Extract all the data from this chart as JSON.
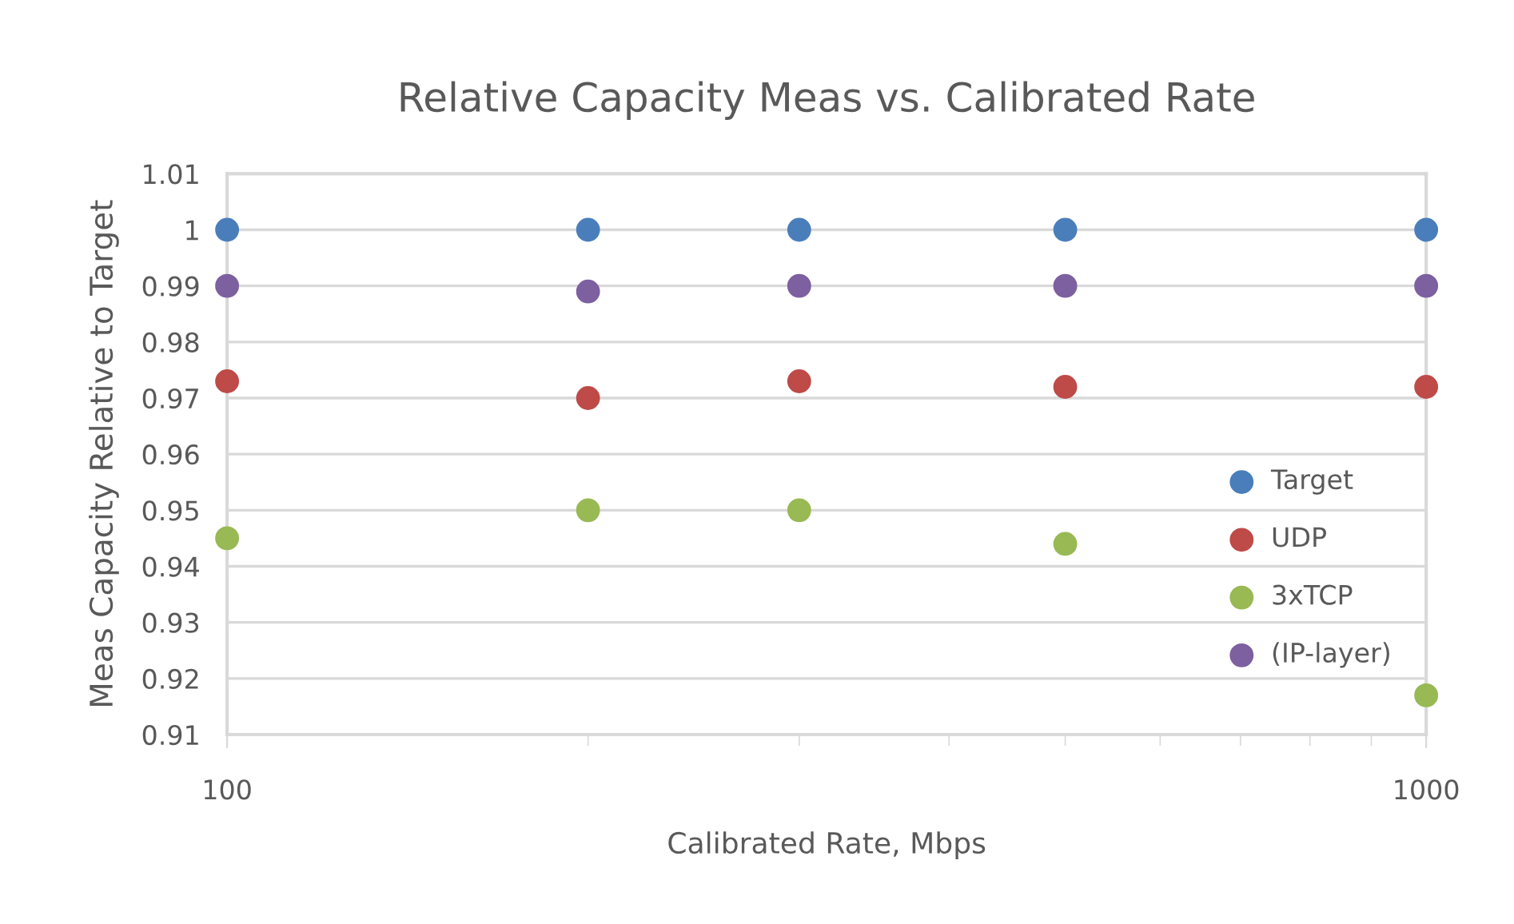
{
  "chart_data": {
    "type": "scatter",
    "title": "Relative Capacity Meas vs. Calibrated Rate",
    "xlabel": "Calibrated Rate, Mbps",
    "ylabel": "Meas Capacity Relative to Target",
    "x": [
      100,
      200,
      300,
      500,
      1000
    ],
    "series": [
      {
        "name": "Target",
        "color": "#4a7ebb",
        "values": [
          1,
          1,
          1,
          1,
          1
        ]
      },
      {
        "name": "UDP",
        "color": "#be4b48",
        "values": [
          0.973,
          0.97,
          0.973,
          0.972,
          0.972
        ]
      },
      {
        "name": "3xTCP",
        "color": "#98b954",
        "values": [
          0.945,
          0.95,
          0.95,
          0.944,
          0.917
        ]
      },
      {
        "name": "(IP-layer)",
        "color": "#7d60a0",
        "values": [
          0.99,
          0.989,
          0.99,
          0.99,
          0.99
        ]
      }
    ],
    "log": "x",
    "xlim": [
      100,
      1000
    ],
    "xticks": [
      100,
      1000
    ],
    "ylim": [
      0.91,
      1.01
    ],
    "yticks": [
      0.91,
      0.92,
      0.93,
      0.94,
      0.95,
      0.96,
      0.97,
      0.98,
      0.99,
      1,
      1.01
    ],
    "grid": "y",
    "legend": "lower right",
    "marker": "circle"
  }
}
